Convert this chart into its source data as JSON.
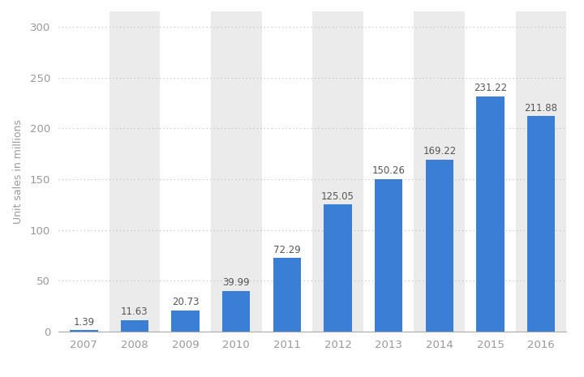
{
  "years": [
    "2007",
    "2008",
    "2009",
    "2010",
    "2011",
    "2012",
    "2013",
    "2014",
    "2015",
    "2016"
  ],
  "values": [
    1.39,
    11.63,
    20.73,
    39.99,
    72.29,
    125.05,
    150.26,
    169.22,
    231.22,
    211.88
  ],
  "bar_color": "#3a7fd5",
  "background_color": "#ffffff",
  "plot_bg_color": "#ffffff",
  "stripe_color": "#ebebeb",
  "ylabel": "Unit sales in millions",
  "yticks": [
    0,
    50,
    100,
    150,
    200,
    250,
    300
  ],
  "ylim": [
    0,
    315
  ],
  "label_color": "#999999",
  "bar_label_color": "#555555",
  "label_fontsize": 8.5,
  "tick_fontsize": 9.5,
  "ylabel_fontsize": 9,
  "grid_color": "#bbbbbb",
  "bar_width": 0.55
}
